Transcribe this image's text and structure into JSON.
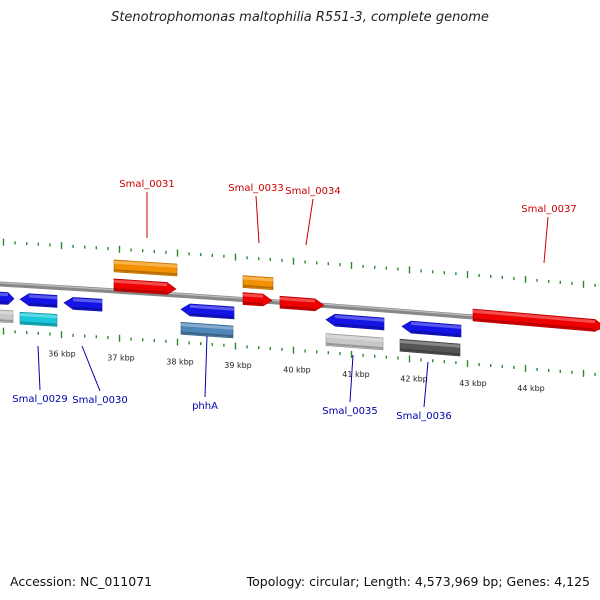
{
  "title": "Stenotrophomonas maltophilia R551-3, complete genome",
  "footer": {
    "accession": "Accession: NC_011071",
    "summary": "Topology: circular; Length: 4,573,969 bp; Genes: 4,125"
  },
  "colors": {
    "backbone": "#888888",
    "tick": "#2a8a2a",
    "forward_label": "#cc0000",
    "reverse_label": "#0000aa",
    "red": "#ee0000",
    "orange": "#f39200",
    "blue": "#1414e6",
    "cyan": "#18c8d8",
    "lightgray": "#c8c8c8",
    "steelblue": "#4f86b8",
    "darkgray": "#555555"
  },
  "scale": {
    "labels": [
      "36 kbp",
      "37 kbp",
      "38 kbp",
      "39 kbp",
      "40 kbp",
      "41 kbp",
      "42 kbp",
      "43 kbp",
      "44 kbp"
    ]
  },
  "genes": [
    {
      "name": "Smal_0029",
      "strand": "reverse",
      "color": "blue",
      "labeled": true
    },
    {
      "name": "Smal_0030",
      "strand": "reverse",
      "color": "blue",
      "labeled": true
    },
    {
      "name": "Smal_0031",
      "strand": "forward",
      "color": "red",
      "labeled": true
    },
    {
      "name": "phhA",
      "strand": "reverse",
      "color": "blue",
      "labeled": true
    },
    {
      "name": "Smal_0033",
      "strand": "forward",
      "color": "red",
      "labeled": true
    },
    {
      "name": "Smal_0034",
      "strand": "forward",
      "color": "red",
      "labeled": true
    },
    {
      "name": "Smal_0035",
      "strand": "reverse",
      "color": "blue",
      "labeled": true
    },
    {
      "name": "Smal_0036",
      "strand": "reverse",
      "color": "blue",
      "labeled": true
    },
    {
      "name": "Smal_0037",
      "strand": "forward",
      "color": "red",
      "labeled": true
    }
  ]
}
